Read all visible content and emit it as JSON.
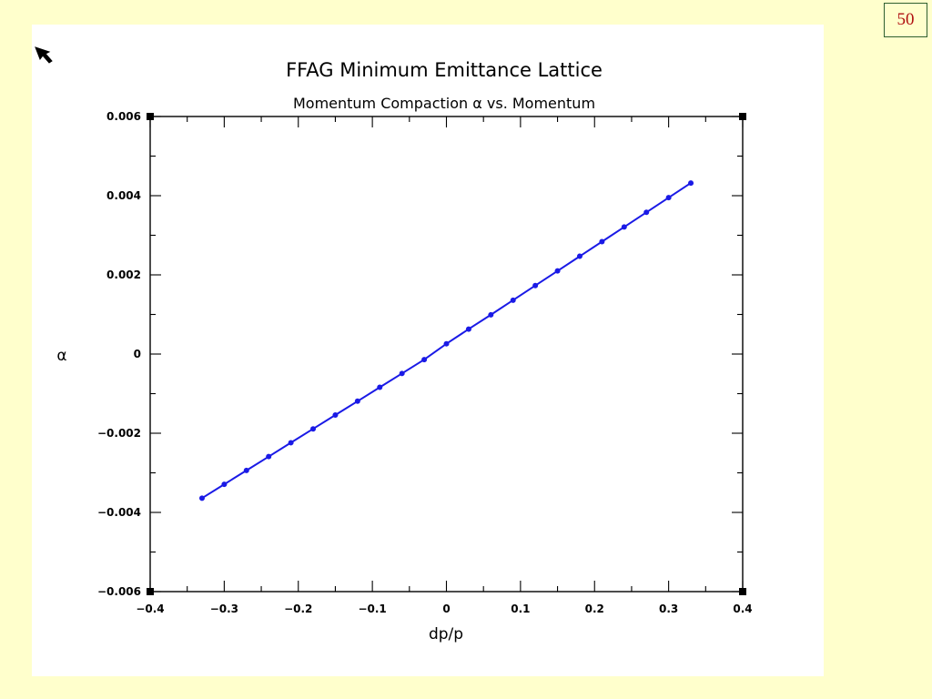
{
  "slide": {
    "page_number": "50",
    "cursor_icon": "arrow-cursor-icon"
  },
  "chart_data": {
    "type": "line",
    "title": "FFAG Minimum Emittance Lattice",
    "subtitle": "Momentum Compaction α vs. Momentum",
    "xlabel": "dp/p",
    "ylabel": "α",
    "xlim": [
      -0.4,
      0.4
    ],
    "ylim": [
      -0.006,
      0.006
    ],
    "x_ticks": [
      -0.4,
      -0.3,
      -0.2,
      -0.1,
      0,
      0.1,
      0.2,
      0.3,
      0.4
    ],
    "x_tick_labels": [
      "−0.4",
      "−0.3",
      "−0.2",
      "−0.1",
      "0",
      "0.1",
      "0.2",
      "0.3",
      "0.4"
    ],
    "y_ticks": [
      -0.006,
      -0.004,
      -0.002,
      0,
      0.002,
      0.004,
      0.006
    ],
    "y_tick_labels": [
      "−0.006",
      "−0.004",
      "−0.002",
      "0",
      "0.002",
      "0.004",
      "0.006"
    ],
    "grid": false,
    "legend": "none",
    "series": [
      {
        "color": "#1a1ae6",
        "x": [
          -0.33,
          -0.3,
          -0.27,
          -0.24,
          -0.21,
          -0.18,
          -0.15,
          -0.12,
          -0.09,
          -0.06,
          -0.03,
          0.0,
          0.03,
          0.06,
          0.09,
          0.12,
          0.15,
          0.18,
          0.21,
          0.24,
          0.27,
          0.3,
          0.33
        ],
        "y": [
          -0.00364,
          -0.00329,
          -0.00294,
          -0.00259,
          -0.00224,
          -0.00189,
          -0.00154,
          -0.00119,
          -0.00084,
          -0.00049,
          -0.00014,
          0.00026,
          0.00063,
          0.00099,
          0.00136,
          0.00173,
          0.0021,
          0.00247,
          0.00284,
          0.00321,
          0.00358,
          0.00395,
          0.00432
        ]
      }
    ]
  }
}
